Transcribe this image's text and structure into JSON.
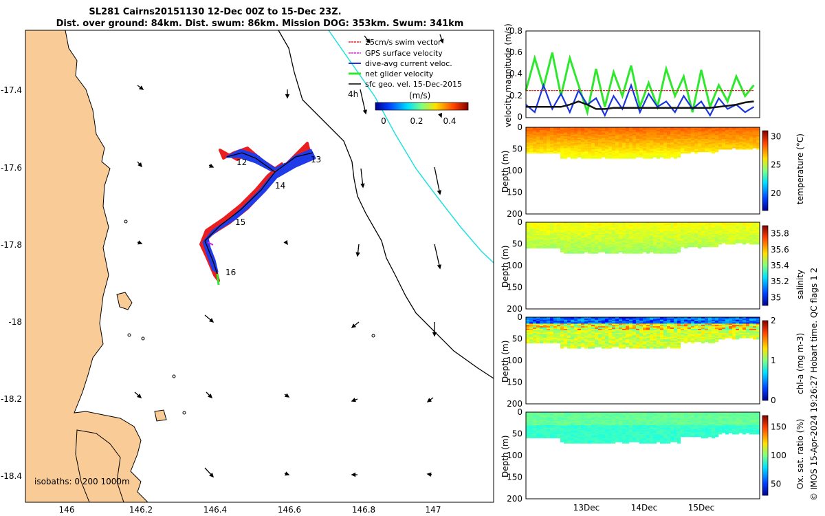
{
  "title_line1": "SL281 Cairns20151130 12-Dec 00Z to 15-Dec 23Z.",
  "title_line2": "Dist. over ground: 84km. Dist. swum: 86km. Mission DOG: 353km. Swum: 341km",
  "map": {
    "lon_ticks": [
      "146",
      "146.2",
      "146.4",
      "146.6",
      "146.8",
      "147"
    ],
    "lat_ticks": [
      "-17.4",
      "-17.6",
      "-17.8",
      "-18",
      "-18.2",
      "-18.4"
    ],
    "isobaths_label": "isobaths: 0   200  1000m",
    "track_labels": [
      "12",
      "13",
      "14",
      "15",
      "16"
    ],
    "legend": [
      {
        "label": "25cm/s swim vector",
        "color": "#e8231d"
      },
      {
        "label": "GPS surface velocity",
        "color": "#e020e0"
      },
      {
        "label": "dive-avg current veloc.",
        "color": "#1a35e0"
      },
      {
        "label": "net glider velocity",
        "color": "#2ee82e"
      },
      {
        "label": "sfc geo. vel. 15-Dec-2015",
        "color": "#000000"
      }
    ],
    "colorbar_title": "(m/s)",
    "colorbar_ticks": [
      "0",
      "0.2",
      "0.4"
    ],
    "time_scale_label": "4h",
    "colors": {
      "land": "#f9cb97",
      "track_blue": "#1f3ce8",
      "track_red": "#ea1e1e",
      "isobath_cyan": "#22e0e0"
    }
  },
  "chart_data": [
    {
      "type": "line",
      "title": "",
      "ylabel": "velocity magnitude (m/s)",
      "ylim": [
        0,
        0.8
      ],
      "yticks": [
        "0",
        "0.2",
        "0.4",
        "0.6",
        "0.8"
      ],
      "x": [
        12.0,
        12.15,
        12.3,
        12.45,
        12.6,
        12.75,
        12.9,
        13.05,
        13.2,
        13.35,
        13.5,
        13.65,
        13.8,
        13.95,
        14.1,
        14.25,
        14.4,
        14.55,
        14.7,
        14.85,
        15.0,
        15.15,
        15.3,
        15.45,
        15.6,
        15.75,
        15.9
      ],
      "series": [
        {
          "name": "net glider velocity",
          "color": "#2ee82e",
          "values": [
            0.25,
            0.55,
            0.28,
            0.6,
            0.2,
            0.55,
            0.3,
            0.05,
            0.45,
            0.1,
            0.42,
            0.2,
            0.48,
            0.1,
            0.32,
            0.1,
            0.45,
            0.2,
            0.38,
            0.05,
            0.44,
            0.1,
            0.3,
            0.15,
            0.38,
            0.2,
            0.3
          ]
        },
        {
          "name": "dive-avg current veloc.",
          "color": "#1a35e0",
          "values": [
            0.12,
            0.05,
            0.3,
            0.08,
            0.22,
            0.05,
            0.25,
            0.12,
            0.18,
            0.02,
            0.2,
            0.08,
            0.3,
            0.05,
            0.22,
            0.1,
            0.15,
            0.05,
            0.2,
            0.08,
            0.15,
            0.02,
            0.18,
            0.08,
            0.12,
            0.05,
            0.1
          ]
        },
        {
          "name": "sfc geo. vel.",
          "color": "#111111",
          "values": [
            0.1,
            0.1,
            0.1,
            0.1,
            0.1,
            0.12,
            0.15,
            0.12,
            0.08,
            0.08,
            0.09,
            0.09,
            0.09,
            0.09,
            0.09,
            0.09,
            0.09,
            0.09,
            0.09,
            0.09,
            0.09,
            0.09,
            0.1,
            0.11,
            0.12,
            0.14,
            0.15
          ]
        },
        {
          "name": "25cm/s swim vector",
          "color": "#e8231d",
          "values": [
            0.25,
            0.25,
            0.25,
            0.25,
            0.25,
            0.25,
            0.25,
            0.25,
            0.25,
            0.25,
            0.25,
            0.25,
            0.25,
            0.25,
            0.25,
            0.25,
            0.25,
            0.25,
            0.25,
            0.25,
            0.25,
            0.25,
            0.25,
            0.25,
            0.25,
            0.25,
            0.25
          ]
        }
      ]
    },
    {
      "type": "heatmap",
      "label": "temperature (°C)",
      "clim": [
        17,
        31
      ],
      "cticks": [
        "20",
        "25",
        "30"
      ],
      "depth_ticks": [
        "0",
        "50",
        "100",
        "150",
        "200"
      ],
      "ylabel": "Depth (m)"
    },
    {
      "type": "heatmap",
      "label": "salinity",
      "clim": [
        34.9,
        35.9
      ],
      "cticks": [
        "35",
        "35.2",
        "35.4",
        "35.6",
        "35.8"
      ],
      "depth_ticks": [
        "0",
        "50",
        "100",
        "150",
        "200"
      ],
      "ylabel": "Depth (m)"
    },
    {
      "type": "heatmap",
      "label": "chl-a (mg m-3)",
      "clim": [
        0,
        2
      ],
      "cticks": [
        "0",
        "1",
        "2"
      ],
      "depth_ticks": [
        "0",
        "50",
        "100",
        "150",
        "200"
      ],
      "ylabel": "Depth (m)"
    },
    {
      "type": "heatmap",
      "label": "Ox. sat. ratio (%)",
      "clim": [
        30,
        170
      ],
      "cticks": [
        "50",
        "100",
        "150"
      ],
      "depth_ticks": [
        "0",
        "50",
        "100",
        "150",
        "200"
      ],
      "ylabel": "Depth (m)"
    }
  ],
  "time_ticks": [
    "13Dec",
    "14Dec",
    "15Dec"
  ],
  "side_note": "© IMOS 15-Apr-2024 19:26:27 Hobart time. QC flags 1  2"
}
